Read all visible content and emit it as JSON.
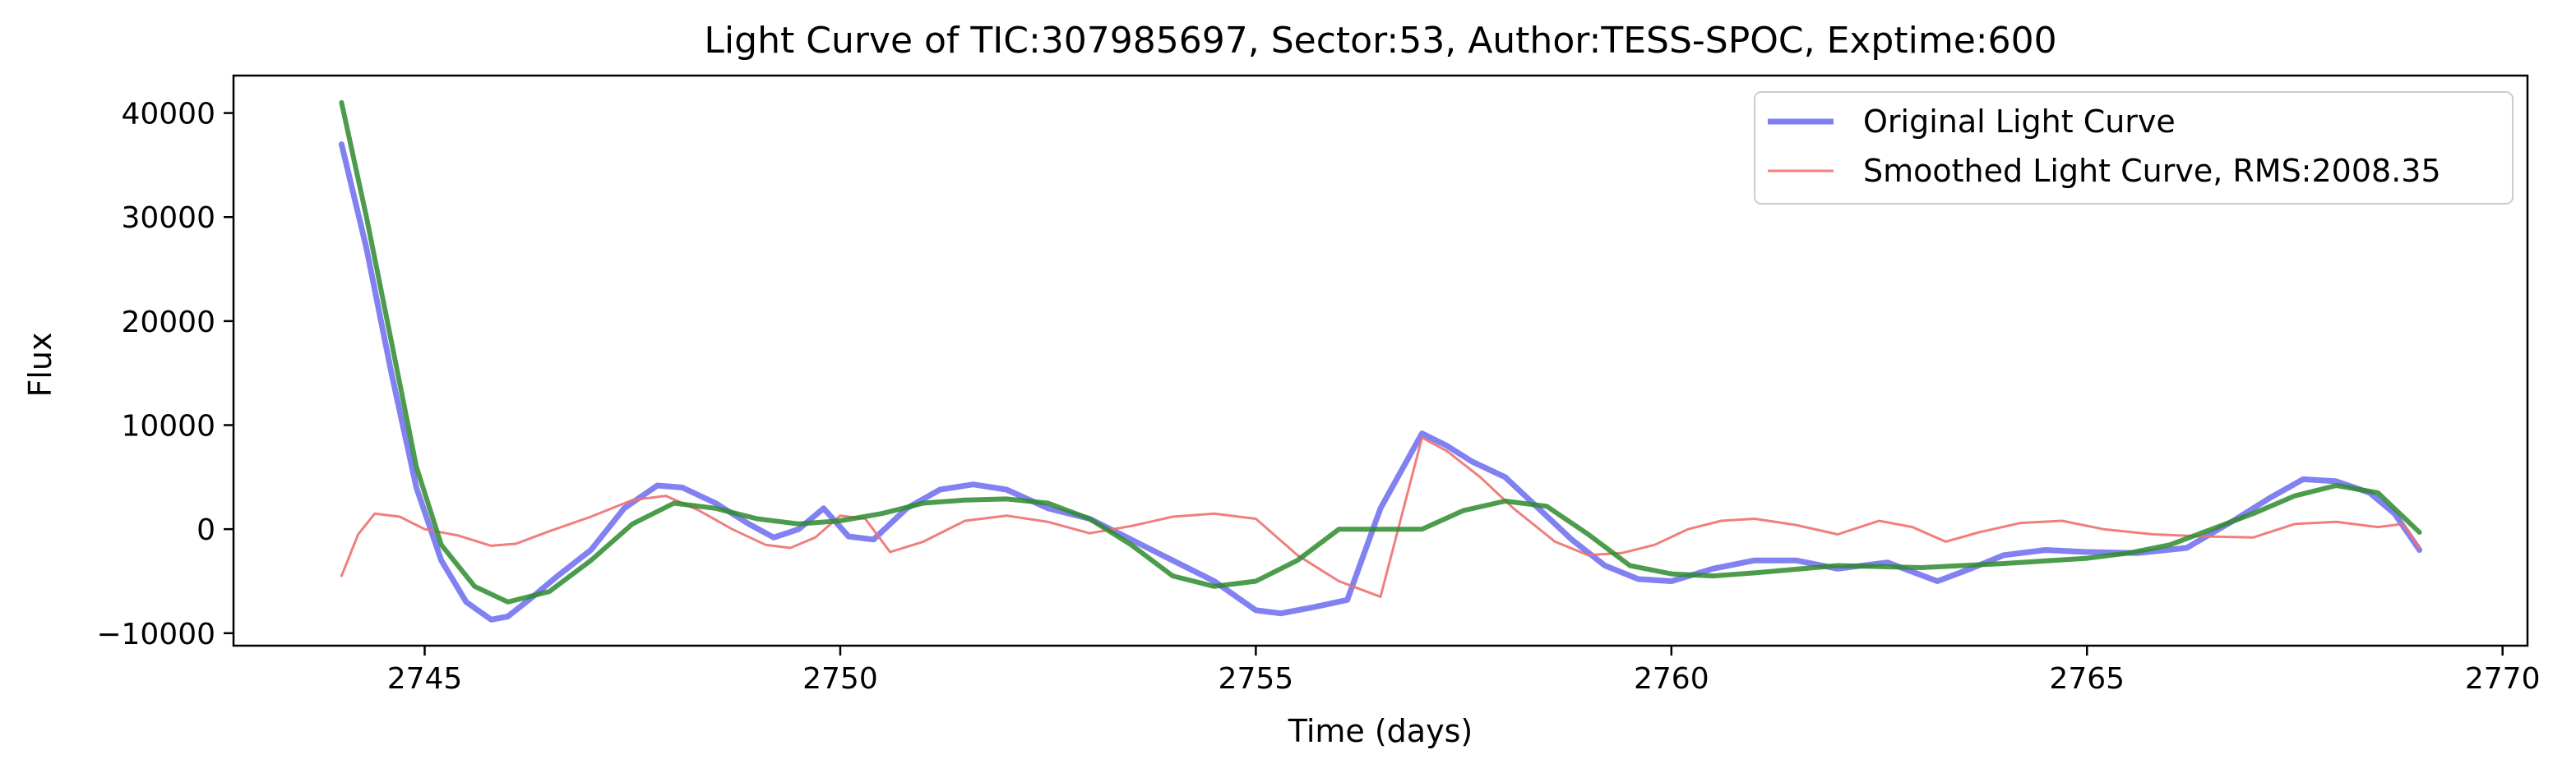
{
  "chart_data": {
    "type": "line",
    "title": "Light Curve of TIC:307985697, Sector:53, Author:TESS-SPOC, Exptime:600",
    "xlabel": "Time (days)",
    "ylabel": "Flux",
    "xlim": [
      2742.7,
      2770.3
    ],
    "ylim": [
      -11200,
      43600
    ],
    "x_ticks": [
      2745,
      2750,
      2755,
      2760,
      2765,
      2770
    ],
    "y_ticks": [
      -10000,
      0,
      10000,
      20000,
      30000,
      40000
    ],
    "x_tick_labels": [
      "2745",
      "2750",
      "2755",
      "2760",
      "2765",
      "2770"
    ],
    "y_tick_labels": [
      "−10000",
      "0",
      "10000",
      "20000",
      "30000",
      "40000"
    ],
    "grid": false,
    "legend_position": "upper right",
    "legend": [
      {
        "label": "Original Light Curve",
        "color": "#7f7ff0"
      },
      {
        "label": "Smoothed Light Curve, RMS:2008.35",
        "color": "#f08080"
      }
    ],
    "series": [
      {
        "name": "Original Light Curve",
        "color": "#6b6bef",
        "x": [
          2744.0,
          2744.3,
          2744.6,
          2744.9,
          2745.2,
          2745.5,
          2745.8,
          2746.0,
          2746.3,
          2746.6,
          2747.0,
          2747.4,
          2747.8,
          2748.1,
          2748.5,
          2748.9,
          2749.2,
          2749.5,
          2749.8,
          2750.1,
          2750.4,
          2750.8,
          2751.2,
          2751.6,
          2752.0,
          2752.5,
          2753.0,
          2753.5,
          2754.0,
          2754.5,
          2755.0,
          2755.3,
          2755.7,
          2756.1,
          2756.5,
          2757.0,
          2757.3,
          2757.6,
          2758.0,
          2758.4,
          2758.8,
          2759.2,
          2759.6,
          2760.0,
          2760.5,
          2761.0,
          2761.5,
          2762.0,
          2762.6,
          2763.2,
          2763.6,
          2764.0,
          2764.5,
          2765.0,
          2765.6,
          2766.2,
          2766.8,
          2767.2,
          2767.6,
          2768.0,
          2768.4,
          2768.7,
          2769.0
        ],
        "y": [
          37000,
          27000,
          15000,
          4000,
          -3000,
          -7000,
          -8700,
          -8400,
          -6500,
          -4500,
          -2000,
          2000,
          4200,
          4000,
          2500,
          500,
          -800,
          0,
          2000,
          -700,
          -1000,
          2000,
          3800,
          4300,
          3800,
          2000,
          1000,
          -1000,
          -3000,
          -5000,
          -7800,
          -8100,
          -7500,
          -6800,
          2000,
          9200,
          8000,
          6500,
          5000,
          2000,
          -1000,
          -3500,
          -4800,
          -5000,
          -3800,
          -3000,
          -3000,
          -3800,
          -3200,
          -5000,
          -3800,
          -2500,
          -2000,
          -2200,
          -2300,
          -1800,
          1000,
          3000,
          4800,
          4600,
          3500,
          1500,
          -2000
        ]
      },
      {
        "name": "Smoothed Light Curve, RMS:2008.35",
        "color": "#f07070",
        "x": [
          2744.0,
          2744.2,
          2744.4,
          2744.7,
          2745.0,
          2745.4,
          2745.8,
          2746.1,
          2746.5,
          2747.0,
          2747.5,
          2747.9,
          2748.3,
          2748.7,
          2749.1,
          2749.4,
          2749.7,
          2750.0,
          2750.3,
          2750.6,
          2751.0,
          2751.5,
          2752.0,
          2752.5,
          2753.0,
          2753.5,
          2754.0,
          2754.5,
          2755.0,
          2755.5,
          2756.0,
          2756.5,
          2757.0,
          2757.3,
          2757.7,
          2758.1,
          2758.6,
          2759.0,
          2759.4,
          2759.8,
          2760.2,
          2760.6,
          2761.0,
          2761.5,
          2762.0,
          2762.5,
          2762.9,
          2763.3,
          2763.7,
          2764.2,
          2764.7,
          2765.2,
          2765.8,
          2766.4,
          2767.0,
          2767.5,
          2768.0,
          2768.5,
          2768.8,
          2769.0
        ],
        "y": [
          -4500,
          -500,
          1500,
          1200,
          0,
          -600,
          -1600,
          -1400,
          -200,
          1200,
          2800,
          3200,
          1800,
          0,
          -1500,
          -1800,
          -800,
          1300,
          1000,
          -2200,
          -1200,
          800,
          1300,
          700,
          -400,
          300,
          1200,
          1500,
          1000,
          -2500,
          -5000,
          -6500,
          8800,
          7500,
          5000,
          2000,
          -1200,
          -2500,
          -2300,
          -1500,
          0,
          800,
          1000,
          400,
          -500,
          800,
          200,
          -1200,
          -300,
          600,
          800,
          0,
          -500,
          -700,
          -800,
          500,
          700,
          200,
          500,
          -1800
        ]
      },
      {
        "name": "",
        "color": "#2e8b2e",
        "x": [
          2744.0,
          2744.3,
          2744.6,
          2744.9,
          2745.2,
          2745.6,
          2746.0,
          2746.5,
          2747.0,
          2747.5,
          2748.0,
          2748.5,
          2749.0,
          2749.5,
          2750.0,
          2750.5,
          2751.0,
          2751.5,
          2752.0,
          2752.5,
          2753.0,
          2753.5,
          2754.0,
          2754.5,
          2755.0,
          2755.5,
          2756.0,
          2756.5,
          2757.0,
          2757.5,
          2758.0,
          2758.5,
          2759.0,
          2759.5,
          2760.0,
          2760.5,
          2761.0,
          2762.0,
          2763.0,
          2764.0,
          2765.0,
          2765.5,
          2766.0,
          2766.5,
          2767.0,
          2767.5,
          2768.0,
          2768.5,
          2769.0
        ],
        "y": [
          41000,
          30000,
          18000,
          6000,
          -1500,
          -5500,
          -7000,
          -6000,
          -3000,
          500,
          2500,
          2000,
          1000,
          500,
          800,
          1500,
          2500,
          2800,
          2900,
          2500,
          1000,
          -1500,
          -4500,
          -5500,
          -5000,
          -3000,
          0,
          0,
          0,
          1800,
          2700,
          2200,
          -500,
          -3500,
          -4300,
          -4500,
          -4200,
          -3500,
          -3700,
          -3300,
          -2800,
          -2300,
          -1500,
          0,
          1500,
          3200,
          4200,
          3500,
          -300
        ]
      }
    ]
  }
}
